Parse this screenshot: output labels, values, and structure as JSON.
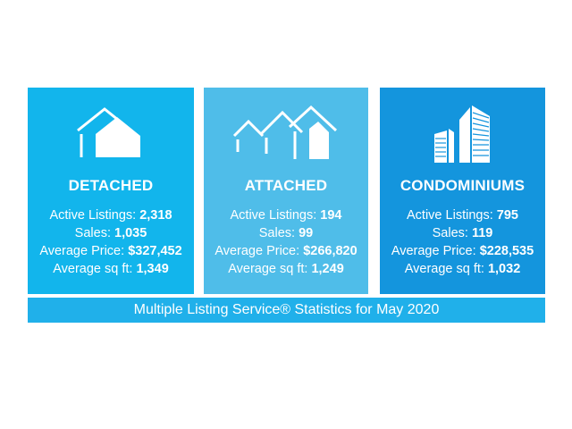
{
  "colors": {
    "detached": "#12b5ec",
    "attached": "#4fbde9",
    "condominiums": "#1495dd",
    "footer": "#20b0ea"
  },
  "cards": [
    {
      "icon": "house-icon",
      "title": "DETACHED",
      "active_label": "Active Listings:",
      "active_value": "2,318",
      "sales_label": "Sales:",
      "sales_value": "1,035",
      "price_label": "Average Price:",
      "price_value": "$327,452",
      "sqft_label": "Average sq ft:",
      "sqft_value": "1,349"
    },
    {
      "icon": "townhouses-icon",
      "title": "ATTACHED",
      "active_label": "Active Listings:",
      "active_value": "194",
      "sales_label": "Sales:",
      "sales_value": "99",
      "price_label": "Average Price:",
      "price_value": "$266,820",
      "sqft_label": "Average sq ft:",
      "sqft_value": "1,249"
    },
    {
      "icon": "condo-towers-icon",
      "title": "CONDOMINIUMS",
      "active_label": "Active Listings:",
      "active_value": "795",
      "sales_label": "Sales:",
      "sales_value": "119",
      "price_label": "Average Price:",
      "price_value": "$228,535",
      "sqft_label": "Average sq ft:",
      "sqft_value": "1,032"
    }
  ],
  "footer": {
    "text": "Multiple Listing Service® Statistics for May 2020"
  }
}
